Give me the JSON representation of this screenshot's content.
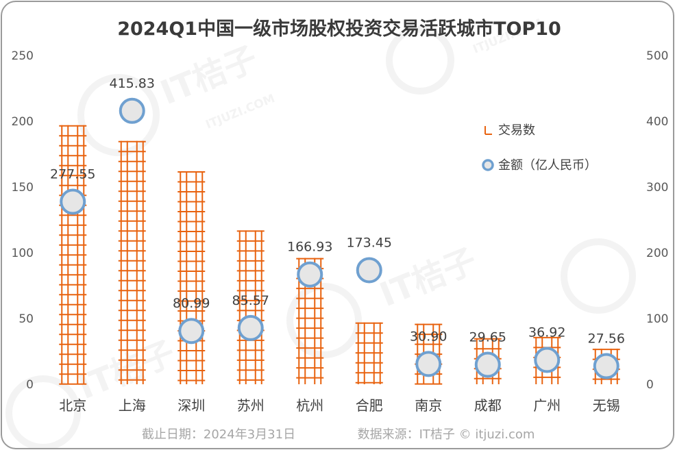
{
  "chart_data": {
    "type": "bar",
    "title": "2024Q1中国一级市场股权投资交易活跃城市TOP10",
    "categories": [
      "北京",
      "上海",
      "深圳",
      "苏州",
      "杭州",
      "合肥",
      "南京",
      "成都",
      "广州",
      "无锡"
    ],
    "series": [
      {
        "name": "交易数",
        "type": "bar",
        "axis": "left",
        "color": "#e8620f",
        "values": [
          197,
          185,
          162,
          117,
          96,
          47,
          46,
          35,
          36,
          27
        ]
      },
      {
        "name": "金额（亿人民币）",
        "type": "scatter",
        "axis": "right",
        "color": "#6fa0d0",
        "values": [
          277.55,
          415.83,
          80.99,
          85.57,
          166.93,
          173.45,
          30.9,
          29.65,
          36.92,
          27.56
        ],
        "labels": [
          "277.55",
          "415.83",
          "80.99",
          "85.57",
          "166.93",
          "173.45",
          "30.90",
          "29.65",
          "36.92",
          "27.56"
        ]
      }
    ],
    "y_left": {
      "lim": [
        0,
        250
      ],
      "ticks": [
        "0",
        "50",
        "100",
        "150",
        "200",
        "250"
      ]
    },
    "y_right": {
      "lim": [
        0,
        500
      ],
      "ticks": [
        "0",
        "100",
        "200",
        "300",
        "400",
        "500"
      ]
    },
    "grid": false,
    "legend_position": "top-right"
  },
  "footer": {
    "date": "截止日期：2024年3月31日",
    "source": "数据来源：IT桔子 © itjuzi.com"
  },
  "watermark": {
    "brand": "IT桔子",
    "domain": "ITJUZI.COM"
  }
}
